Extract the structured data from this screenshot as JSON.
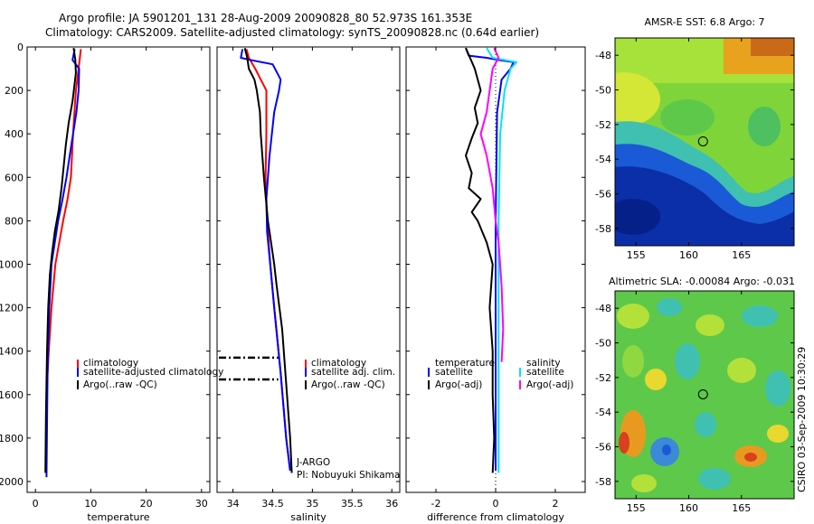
{
  "header": {
    "line1": "Argo profile: JA 5901201_131 28-Aug-2009 20090828_80 52.973S 161.353E",
    "line2": "Climatology: CARS2009. Satellite-adjusted climatology: synTS_20090828.nc (0.64d earlier)"
  },
  "colors": {
    "climatology": "#ff0000",
    "satellite": "#0000ff",
    "argo": "#000000",
    "satellite_salinity_diff": "#00e5ee",
    "argo_salinity_diff": "#ff00ff"
  },
  "chart_data": [
    {
      "type": "line",
      "xlabel": "temperature",
      "ylabel": "",
      "xlim": [
        -1.5,
        31.5
      ],
      "ylim": [
        2050,
        0
      ],
      "xticks": [
        0,
        10,
        20,
        30
      ],
      "xtick_labels": [
        "0",
        "10",
        "20",
        "30"
      ],
      "yticks": [
        0,
        200,
        400,
        600,
        800,
        1000,
        1200,
        1400,
        1600,
        1800,
        2000
      ],
      "ytick_labels": [
        "0",
        "200",
        "400",
        "600",
        "800",
        "1000",
        "1200",
        "1400",
        "1600",
        "1800",
        "2000"
      ],
      "legend": {
        "position": "lower-right",
        "entries": [
          "climatology",
          "satellite-adjusted climatology",
          "Argo(..raw -QC)"
        ],
        "colors": [
          "#ff0000",
          "#0000ff",
          "#000000"
        ]
      },
      "series": [
        {
          "name": "climatology",
          "color": "#ff0000",
          "x": [
            8.2,
            7.8,
            7.3,
            6.8,
            6.4,
            5.8,
            5.0,
            4.3,
            3.6,
            2.9,
            2.4,
            2.1
          ],
          "y": [
            10,
            100,
            200,
            400,
            600,
            700,
            800,
            900,
            1000,
            1200,
            1400,
            1550
          ]
        },
        {
          "name": "satellite-adjusted climatology",
          "color": "#0000ff",
          "x": [
            7.1,
            6.7,
            7.9,
            7.8,
            7.4,
            6.8,
            6.2,
            5.6,
            4.9,
            4.1,
            3.5,
            2.9,
            2.5,
            2.2,
            2.0
          ],
          "y": [
            10,
            60,
            100,
            200,
            300,
            400,
            500,
            600,
            700,
            800,
            900,
            1000,
            1200,
            1500,
            1980
          ]
        },
        {
          "name": "Argo(..raw -QC)",
          "color": "#000000",
          "x": [
            6.9,
            7.2,
            7.3,
            6.7,
            6.0,
            5.5,
            5.1,
            4.7,
            4.2,
            3.5,
            3.0,
            2.6,
            2.3,
            2.1,
            1.9,
            1.8
          ],
          "y": [
            5,
            60,
            120,
            250,
            350,
            450,
            550,
            650,
            750,
            850,
            950,
            1050,
            1200,
            1400,
            1700,
            1960
          ]
        }
      ]
    },
    {
      "type": "line",
      "xlabel": "salinity",
      "ylabel": "",
      "xlim": [
        33.8,
        36.1
      ],
      "ylim": [
        2050,
        0
      ],
      "xticks": [
        34,
        34.5,
        35,
        35.5,
        36
      ],
      "xtick_labels": [
        "34",
        "34.5",
        "35",
        "35.5",
        "36"
      ],
      "legend": {
        "position": "lower-right",
        "entries": [
          "climatology",
          "satellite adj. clim.",
          "Argo(..raw -QC)"
        ],
        "colors": [
          "#ff0000",
          "#0000ff",
          "#000000"
        ]
      },
      "annotations": [
        "J-ARGO",
        "PI: Nobuyuki Shikama"
      ],
      "bad_data_marks": [
        {
          "x": [
            33.82,
            34.57
          ],
          "y": [
            1430,
            1430
          ]
        },
        {
          "x": [
            33.82,
            34.57
          ],
          "y": [
            1530,
            1530
          ]
        }
      ],
      "series": [
        {
          "name": "climatology",
          "color": "#ff0000",
          "x": [
            34.17,
            34.2,
            34.28,
            34.35,
            34.42,
            34.42,
            34.41,
            34.43,
            34.47,
            34.52,
            34.6,
            34.67,
            34.72
          ],
          "y": [
            10,
            50,
            100,
            150,
            200,
            400,
            600,
            800,
            1000,
            1200,
            1500,
            1800,
            1950
          ]
        },
        {
          "name": "satellite adj. clim.",
          "color": "#0000ff",
          "x": [
            34.12,
            34.1,
            34.22,
            34.5,
            34.6,
            34.58,
            34.52,
            34.46,
            34.42,
            34.43,
            34.47,
            34.52,
            34.6,
            34.67,
            34.72
          ],
          "y": [
            10,
            50,
            60,
            80,
            150,
            200,
            300,
            500,
            700,
            850,
            1000,
            1200,
            1500,
            1800,
            1950
          ]
        },
        {
          "name": "Argo(..raw -QC)",
          "color": "#000000",
          "x": [
            34.15,
            34.18,
            34.2,
            34.27,
            34.3,
            34.34,
            34.35,
            34.39,
            34.44,
            34.48,
            34.52,
            34.55,
            34.62,
            34.68,
            34.72,
            34.74
          ],
          "y": [
            5,
            50,
            100,
            150,
            200,
            300,
            400,
            600,
            800,
            900,
            1000,
            1100,
            1300,
            1600,
            1800,
            1960
          ]
        }
      ]
    },
    {
      "type": "line",
      "xlabel": "difference from climatology",
      "ylabel": "",
      "xlim": [
        -3,
        3
      ],
      "ylim": [
        2050,
        0
      ],
      "xticks": [
        -2,
        0,
        2
      ],
      "xtick_labels": [
        "-2",
        "0",
        "2"
      ],
      "legend": {
        "position": "lower-right",
        "left_title": "temperature",
        "right_title": "salinity",
        "left_entries": [
          "satellite",
          "Argo(-adj)"
        ],
        "left_colors": [
          "#0000ff",
          "#000000"
        ],
        "right_entries": [
          "satellite",
          "Argo(-adj)"
        ],
        "right_colors": [
          "#00e5ee",
          "#ff00ff"
        ]
      },
      "series": [
        {
          "name": "temperature satellite",
          "color": "#0000ff",
          "x": [
            -1.0,
            -0.9,
            -0.3,
            0.1,
            0.6,
            0.5,
            0.2,
            0.05,
            0.0,
            0.0
          ],
          "y": [
            5,
            40,
            50,
            60,
            70,
            100,
            150,
            300,
            800,
            1950
          ]
        },
        {
          "name": "temperature Argo(-adj)",
          "color": "#000000",
          "x": [
            -1.0,
            -0.7,
            -0.5,
            -0.7,
            -0.6,
            -0.8,
            -1.0,
            -0.8,
            -0.9,
            -0.5,
            -0.8,
            -0.6,
            -0.3,
            -0.1,
            -0.2,
            -0.1,
            -0.1,
            -0.05,
            -0.1
          ],
          "y": [
            5,
            100,
            200,
            280,
            350,
            420,
            500,
            580,
            650,
            700,
            760,
            800,
            900,
            1000,
            1200,
            1400,
            1600,
            1800,
            1960
          ]
        },
        {
          "name": "salinity satellite",
          "color": "#00e5ee",
          "x": [
            -0.3,
            -0.1,
            0.3,
            0.7,
            0.5,
            0.3,
            0.15,
            0.1,
            0.1
          ],
          "y": [
            5,
            50,
            60,
            70,
            100,
            200,
            400,
            800,
            1960
          ]
        },
        {
          "name": "salinity Argo(-adj)",
          "color": "#ff00ff",
          "x": [
            -0.05,
            0.1,
            -0.1,
            -0.2,
            -0.3,
            -0.5,
            -0.3,
            -0.1,
            0.0,
            0.1,
            0.2,
            0.25,
            0.2
          ],
          "y": [
            5,
            50,
            100,
            200,
            300,
            400,
            500,
            650,
            800,
            900,
            1100,
            1300,
            1450
          ]
        }
      ]
    },
    {
      "type": "heatmap",
      "title": "AMSR-E SST: 6.8 Argo: 7",
      "xlim": [
        153,
        170
      ],
      "ylim": [
        -59,
        -47
      ],
      "xticks": [
        155,
        160,
        165
      ],
      "xtick_labels": [
        "155",
        "160",
        "165"
      ],
      "yticks": [
        -48,
        -50,
        -52,
        -54,
        -56,
        -58
      ],
      "ytick_labels": [
        "-48",
        "-50",
        "-52",
        "-54",
        "-56",
        "-58"
      ],
      "marker": {
        "lon": 161.353,
        "lat": -52.973
      }
    },
    {
      "type": "heatmap",
      "title": "Altimetric SLA: -0.00084 Argo: -0.031",
      "xlim": [
        153,
        170
      ],
      "ylim": [
        -59,
        -47
      ],
      "xticks": [
        155,
        160,
        165
      ],
      "xtick_labels": [
        "155",
        "160",
        "165"
      ],
      "yticks": [
        -48,
        -50,
        -52,
        -54,
        -56,
        -58
      ],
      "ytick_labels": [
        "-48",
        "-50",
        "-52",
        "-54",
        "-56",
        "-58"
      ],
      "marker": {
        "lon": 161.353,
        "lat": -52.973
      }
    }
  ],
  "side_label": "CSIRO 03-Sep-2009 10:30:29"
}
